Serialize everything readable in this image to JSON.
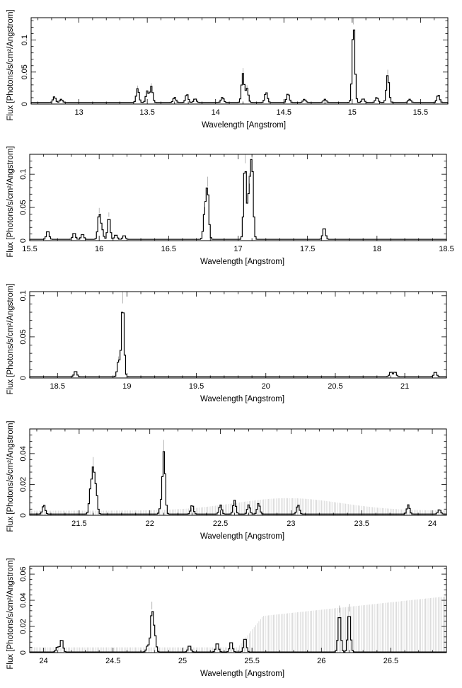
{
  "chart_data": [
    {
      "type": "line",
      "step": true,
      "xlabel": "Wavelength [Angstrom]",
      "ylabel": "Flux [Photons/s/cm²/Angstrom]",
      "xlim": [
        12.65,
        15.7
      ],
      "ylim": [
        0,
        0.135
      ],
      "xticks": [
        13,
        13.5,
        14,
        14.5,
        15,
        15.5
      ],
      "xtick_labels": [
        "13",
        "13.5",
        "14",
        "14.5",
        "15",
        "15.5"
      ],
      "yticks": [
        0,
        0.05,
        0.1
      ],
      "ytick_labels": [
        "0",
        "0.05",
        "0.1"
      ],
      "baseline": 0.0025,
      "background_peak": 0,
      "lines": [
        {
          "x": 12.82,
          "y": 0.009
        },
        {
          "x": 12.87,
          "y": 0.005
        },
        {
          "x": 13.43,
          "y": 0.022
        },
        {
          "x": 13.5,
          "y": 0.018
        },
        {
          "x": 13.53,
          "y": 0.025
        },
        {
          "x": 13.7,
          "y": 0.008
        },
        {
          "x": 13.79,
          "y": 0.013
        },
        {
          "x": 13.85,
          "y": 0.006
        },
        {
          "x": 14.05,
          "y": 0.008
        },
        {
          "x": 14.2,
          "y": 0.045
        },
        {
          "x": 14.23,
          "y": 0.022
        },
        {
          "x": 14.37,
          "y": 0.016
        },
        {
          "x": 14.53,
          "y": 0.014
        },
        {
          "x": 14.65,
          "y": 0.005
        },
        {
          "x": 14.8,
          "y": 0.005
        },
        {
          "x": 15.01,
          "y": 0.122
        },
        {
          "x": 15.08,
          "y": 0.006
        },
        {
          "x": 15.18,
          "y": 0.008
        },
        {
          "x": 15.26,
          "y": 0.043
        },
        {
          "x": 15.42,
          "y": 0.005
        },
        {
          "x": 15.63,
          "y": 0.012
        }
      ]
    },
    {
      "type": "line",
      "step": true,
      "xlabel": "Wavelength [Angstrom]",
      "ylabel": "Flux [Photons/s/cm²/Angstrom]",
      "xlim": [
        15.5,
        18.5
      ],
      "ylim": [
        0,
        0.13
      ],
      "xticks": [
        15.5,
        16,
        16.5,
        17,
        17.5,
        18,
        18.5
      ],
      "xtick_labels": [
        "15.5",
        "16",
        "16.5",
        "17",
        "17.5",
        "18",
        "18.5"
      ],
      "yticks": [
        0,
        0.05,
        0.1
      ],
      "ytick_labels": [
        "0",
        "0.05",
        "0.1"
      ],
      "baseline": 0.002,
      "background_peak": 0,
      "lines": [
        {
          "x": 15.63,
          "y": 0.013
        },
        {
          "x": 15.82,
          "y": 0.01
        },
        {
          "x": 15.88,
          "y": 0.008
        },
        {
          "x": 16.0,
          "y": 0.038
        },
        {
          "x": 16.02,
          "y": 0.015
        },
        {
          "x": 16.07,
          "y": 0.034
        },
        {
          "x": 16.12,
          "y": 0.007
        },
        {
          "x": 16.18,
          "y": 0.006
        },
        {
          "x": 16.78,
          "y": 0.075
        },
        {
          "x": 16.76,
          "y": 0.04
        },
        {
          "x": 17.05,
          "y": 0.114
        },
        {
          "x": 17.08,
          "y": 0.07
        },
        {
          "x": 17.1,
          "y": 0.114
        },
        {
          "x": 17.62,
          "y": 0.018
        }
      ]
    },
    {
      "type": "line",
      "step": true,
      "xlabel": "Wavelength [Angstrom]",
      "ylabel": "Flux [Photons/s/cm²/Angstrom]",
      "xlim": [
        18.3,
        21.3
      ],
      "ylim": [
        0,
        0.105
      ],
      "xticks": [
        18.5,
        19,
        19.5,
        20,
        20.5,
        21
      ],
      "xtick_labels": [
        "18.5",
        "19",
        "19.5",
        "20",
        "20.5",
        "21"
      ],
      "yticks": [
        0,
        0.05,
        0.1
      ],
      "ytick_labels": [
        "0",
        "0.05",
        "0.1"
      ],
      "baseline": 0.0015,
      "background_peak": 0,
      "lines": [
        {
          "x": 18.63,
          "y": 0.007
        },
        {
          "x": 18.97,
          "y": 0.089
        },
        {
          "x": 18.94,
          "y": 0.02
        },
        {
          "x": 20.9,
          "y": 0.006
        },
        {
          "x": 20.93,
          "y": 0.006
        },
        {
          "x": 21.22,
          "y": 0.006
        }
      ]
    },
    {
      "type": "line",
      "step": true,
      "xlabel": "Wavelength [Angstrom]",
      "ylabel": "Flux [Photons/s/cm²/Angstrom]",
      "xlim": [
        21.15,
        24.1
      ],
      "ylim": [
        0,
        0.056
      ],
      "xticks": [
        21.5,
        22,
        22.5,
        23,
        23.5,
        24
      ],
      "xtick_labels": [
        "21.5",
        "22",
        "22.5",
        "23",
        "23.5",
        "24"
      ],
      "yticks": [
        0,
        0.02,
        0.04
      ],
      "ytick_labels": [
        "0",
        "0.02",
        "0.04"
      ],
      "baseline": 0.0008,
      "background_peak": 0.009,
      "lines": [
        {
          "x": 21.25,
          "y": 0.006
        },
        {
          "x": 21.6,
          "y": 0.028
        },
        {
          "x": 21.58,
          "y": 0.015
        },
        {
          "x": 21.62,
          "y": 0.015
        },
        {
          "x": 22.1,
          "y": 0.04
        },
        {
          "x": 22.08,
          "y": 0.006
        },
        {
          "x": 22.3,
          "y": 0.006
        },
        {
          "x": 22.5,
          "y": 0.006
        },
        {
          "x": 22.6,
          "y": 0.009
        },
        {
          "x": 22.7,
          "y": 0.006
        },
        {
          "x": 22.77,
          "y": 0.007
        },
        {
          "x": 23.05,
          "y": 0.006
        },
        {
          "x": 23.83,
          "y": 0.006
        },
        {
          "x": 24.05,
          "y": 0.003
        }
      ]
    },
    {
      "type": "line",
      "step": true,
      "xlabel": "Wavelength [Angstrom]",
      "ylabel": "Flux [Photons/s/cm²/Angstrom]",
      "xlim": [
        23.9,
        26.9
      ],
      "ylim": [
        0,
        0.066
      ],
      "xticks": [
        24,
        24.5,
        25,
        25.5,
        26,
        26.5
      ],
      "xtick_labels": [
        "24",
        "24.5",
        "25",
        "25.5",
        "26",
        "26.5"
      ],
      "yticks": [
        0,
        0.02,
        0.04,
        0.06
      ],
      "ytick_labels": [
        "0",
        "0.02",
        "0.04",
        "0.06"
      ],
      "baseline": 0.0005,
      "background_peak": 0.043,
      "lines": [
        {
          "x": 24.1,
          "y": 0.004
        },
        {
          "x": 24.13,
          "y": 0.01
        },
        {
          "x": 24.78,
          "y": 0.031
        },
        {
          "x": 24.8,
          "y": 0.013
        },
        {
          "x": 24.75,
          "y": 0.005
        },
        {
          "x": 25.05,
          "y": 0.005
        },
        {
          "x": 25.25,
          "y": 0.007
        },
        {
          "x": 25.35,
          "y": 0.008
        },
        {
          "x": 25.45,
          "y": 0.011
        },
        {
          "x": 26.13,
          "y": 0.03
        },
        {
          "x": 26.2,
          "y": 0.031
        }
      ]
    }
  ]
}
